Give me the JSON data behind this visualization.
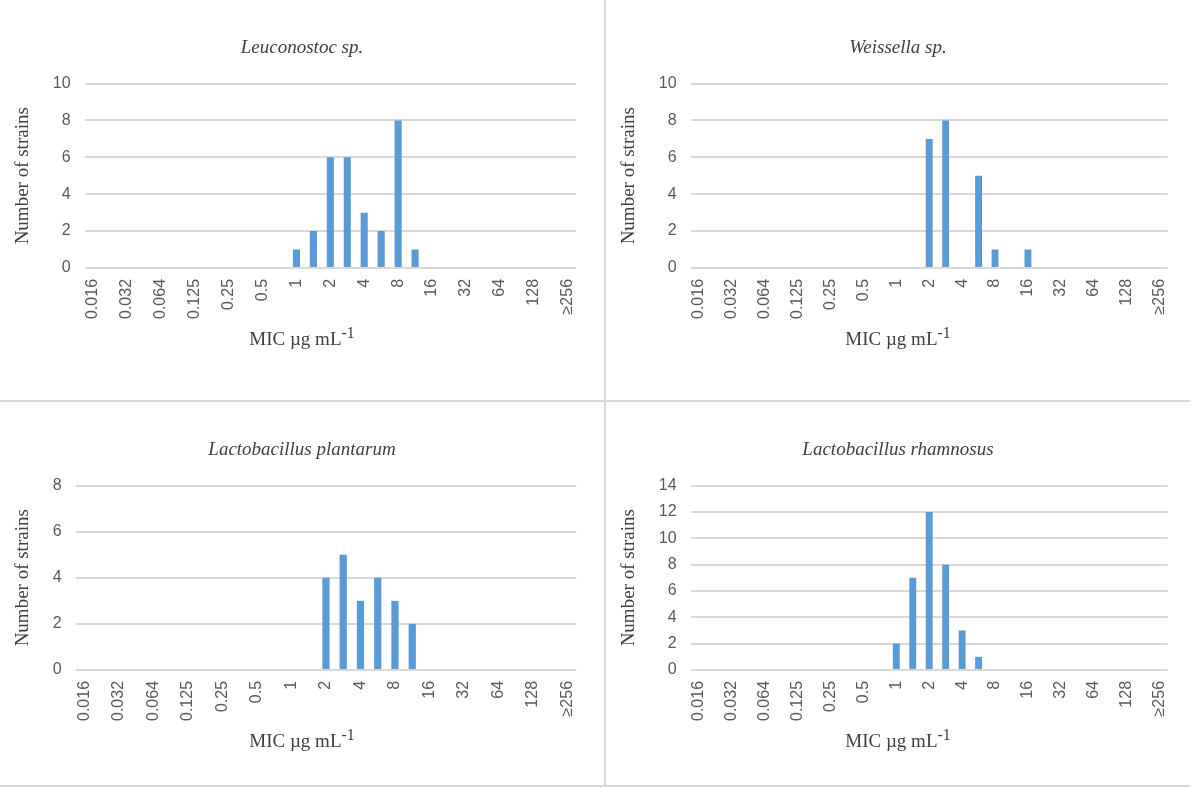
{
  "chart_data": [
    {
      "type": "bar",
      "title": "Leuconostoc sp.",
      "xlabel": "MIC  µg mL$^{-1}$",
      "ylabel": "Number of strains",
      "categories": [
        "0.016",
        null,
        "0.032",
        null,
        "0.064",
        null,
        "0.125",
        null,
        "0.25",
        null,
        "0.5",
        null,
        "1",
        null,
        "2",
        null,
        "4",
        null,
        "8",
        null,
        "16",
        null,
        "32",
        null,
        "64",
        null,
        "128",
        null,
        "≥256"
      ],
      "values": [
        0,
        0,
        0,
        0,
        0,
        0,
        0,
        0,
        0,
        0,
        0,
        0,
        1,
        2,
        6,
        6,
        3,
        2,
        8,
        1,
        0,
        0,
        0,
        0,
        0,
        0,
        0,
        0,
        0
      ],
      "color": "#5b9bd5",
      "ylim": [
        0,
        10
      ],
      "yticks": [
        0,
        2,
        4,
        6,
        8,
        10
      ],
      "grid": "y"
    },
    {
      "type": "bar",
      "title": "Weissella sp.",
      "xlabel": "MIC  µg mL$^{-1}$",
      "ylabel": "Number of strains",
      "categories": [
        "0.016",
        null,
        "0.032",
        null,
        "0.064",
        null,
        "0.125",
        null,
        "0.25",
        null,
        "0.5",
        null,
        "1",
        null,
        "2",
        null,
        "4",
        null,
        "8",
        null,
        "16",
        null,
        "32",
        null,
        "64",
        null,
        "128",
        null,
        "≥256"
      ],
      "values": [
        0,
        0,
        0,
        0,
        0,
        0,
        0,
        0,
        0,
        0,
        0,
        0,
        0,
        0,
        7,
        8,
        0,
        5,
        1,
        0,
        1,
        0,
        0,
        0,
        0,
        0,
        0,
        0,
        0
      ],
      "color": "#5b9bd5",
      "ylim": [
        0,
        10
      ],
      "yticks": [
        0,
        2,
        4,
        6,
        8,
        10
      ],
      "grid": "y"
    },
    {
      "type": "bar",
      "title": "Lactobacillus plantarum",
      "xlabel": "MIC  µg mL$^{-1}$",
      "ylabel": "Number of strains",
      "categories": [
        "0.016",
        null,
        "0.032",
        null,
        "0.064",
        null,
        "0.125",
        null,
        "0.25",
        null,
        "0.5",
        null,
        "1",
        null,
        "2",
        null,
        "4",
        null,
        "8",
        null,
        "16",
        null,
        "32",
        null,
        "64",
        null,
        "128",
        null,
        "≥256"
      ],
      "values": [
        0,
        0,
        0,
        0,
        0,
        0,
        0,
        0,
        0,
        0,
        0,
        0,
        0,
        0,
        4,
        5,
        3,
        4,
        3,
        2,
        0,
        0,
        0,
        0,
        0,
        0,
        0,
        0,
        0
      ],
      "color": "#5b9bd5",
      "ylim": [
        0,
        8
      ],
      "yticks": [
        0,
        2,
        4,
        6,
        8
      ],
      "grid": "y"
    },
    {
      "type": "bar",
      "title": "Lactobacillus rhamnosus",
      "xlabel": "MIC  µg mL$^{-1}$",
      "ylabel": "Number of strains",
      "categories": [
        "0.016",
        null,
        "0.032",
        null,
        "0.064",
        null,
        "0.125",
        null,
        "0.25",
        null,
        "0.5",
        null,
        "1",
        null,
        "2",
        null,
        "4",
        null,
        "8",
        null,
        "16",
        null,
        "32",
        null,
        "64",
        null,
        "128",
        null,
        "≥256"
      ],
      "values": [
        0,
        0,
        0,
        0,
        0,
        0,
        0,
        0,
        0,
        0,
        0,
        0,
        2,
        7,
        12,
        8,
        3,
        1,
        0,
        0,
        0,
        0,
        0,
        0,
        0,
        0,
        0,
        0,
        0
      ],
      "color": "#5b9bd5",
      "ylim": [
        0,
        14
      ],
      "yticks": [
        0,
        2,
        4,
        6,
        8,
        10,
        12,
        14
      ],
      "grid": "y"
    }
  ]
}
